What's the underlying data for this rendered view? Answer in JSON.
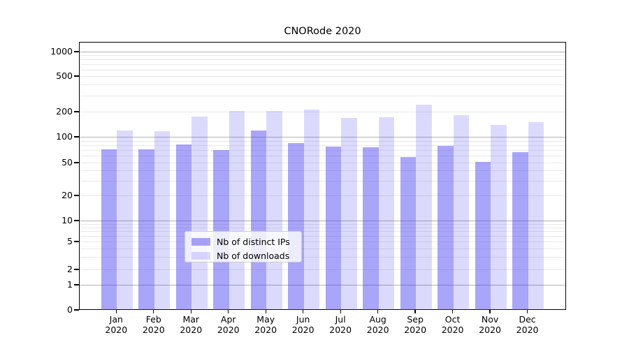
{
  "title": "CNORode 2020",
  "chart_data": {
    "type": "bar",
    "title": "CNORode 2020",
    "categories": [
      "Jan 2020",
      "Feb 2020",
      "Mar 2020",
      "Apr 2020",
      "May 2020",
      "Jun 2020",
      "Jul 2020",
      "Aug 2020",
      "Sep 2020",
      "Oct 2020",
      "Nov 2020",
      "Dec 2020"
    ],
    "months": [
      "Jan",
      "Feb",
      "Mar",
      "Apr",
      "May",
      "Jun",
      "Jul",
      "Aug",
      "Sep",
      "Oct",
      "Nov",
      "Dec"
    ],
    "year": "2020",
    "series": [
      {
        "name": "Nb of distinct IPs",
        "color": "rgba(59,51,238,0.44)",
        "values": [
          72,
          71,
          82,
          70,
          119,
          84,
          77,
          75,
          58,
          79,
          51,
          66
        ]
      },
      {
        "name": "Nb of downloads",
        "color": "rgba(59,51,238,0.18)",
        "values": [
          120,
          117,
          176,
          205,
          205,
          210,
          167,
          171,
          240,
          182,
          139,
          151
        ]
      }
    ],
    "yticks": [
      0,
      1,
      2,
      5,
      10,
      20,
      50,
      100,
      200,
      500,
      1000
    ],
    "yscale": "symlog",
    "ylim": [
      0,
      1300
    ],
    "xlabel": "",
    "ylabel": "",
    "grid": "horizontal major+minor",
    "legend": {
      "position": "inside-bottom-center",
      "entries": [
        "Nb of distinct IPs",
        "Nb of downloads"
      ]
    }
  },
  "colors": {
    "background": "#ffffff",
    "bar_distinct_ips": "#a6a3f4",
    "bar_downloads": "#d8d6f8",
    "grid_major": "#b3b3b3",
    "grid_minor": "#e9e9e9",
    "spine": "#000000",
    "text": "#000000",
    "legend_border": "#cccccc"
  }
}
